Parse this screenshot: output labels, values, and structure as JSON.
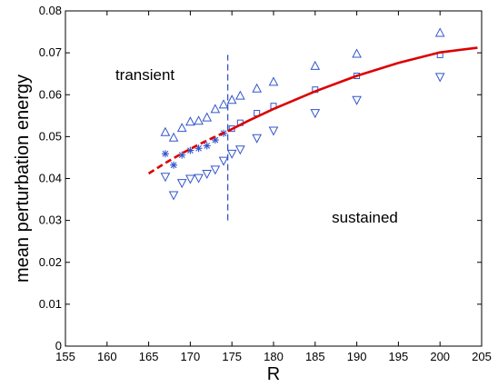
{
  "chart_data": {
    "type": "scatter",
    "title": "",
    "xlabel": "R",
    "ylabel": "mean perturbation energy",
    "xlim": [
      155,
      205
    ],
    "ylim": [
      0,
      0.08
    ],
    "xticks": [
      155,
      160,
      165,
      170,
      175,
      180,
      185,
      190,
      195,
      200,
      205
    ],
    "yticks": [
      0,
      0.01,
      0.02,
      0.03,
      0.04,
      0.05,
      0.06,
      0.07,
      0.08
    ],
    "ytick_labels": [
      "0",
      "0.01",
      "0.02",
      "0.03",
      "0.04",
      "0.05",
      "0.06",
      "0.07",
      "0.08"
    ],
    "grid": false,
    "annotations": [
      {
        "text": "transient",
        "x": 161,
        "y": 0.0635
      },
      {
        "text": "sustained",
        "x": 187,
        "y": 0.0295
      }
    ],
    "threshold": {
      "x": 174.5,
      "y_range": [
        0.03,
        0.0695
      ],
      "style": "dashed",
      "color": "#3355cc"
    },
    "series": [
      {
        "marker": "triangle-up",
        "color": "#3355cc",
        "points": [
          [
            167,
            0.051
          ],
          [
            168,
            0.0497
          ],
          [
            169,
            0.052
          ],
          [
            170,
            0.0535
          ],
          [
            171,
            0.0537
          ],
          [
            172,
            0.0545
          ],
          [
            173,
            0.0565
          ],
          [
            174,
            0.0576
          ],
          [
            175,
            0.0587
          ],
          [
            176,
            0.0597
          ],
          [
            178,
            0.0614
          ],
          [
            180,
            0.063
          ],
          [
            185,
            0.0668
          ],
          [
            190,
            0.0697
          ],
          [
            200,
            0.0747
          ]
        ]
      },
      {
        "marker": "triangle-down",
        "color": "#3355cc",
        "points": [
          [
            167,
            0.0405
          ],
          [
            168,
            0.0361
          ],
          [
            169,
            0.039
          ],
          [
            170,
            0.04
          ],
          [
            171,
            0.0402
          ],
          [
            172,
            0.0412
          ],
          [
            173,
            0.0422
          ],
          [
            174,
            0.0443
          ],
          [
            175,
            0.046
          ],
          [
            176,
            0.047
          ],
          [
            178,
            0.0497
          ],
          [
            180,
            0.0515
          ],
          [
            185,
            0.0557
          ],
          [
            190,
            0.0588
          ],
          [
            200,
            0.0643
          ]
        ]
      },
      {
        "marker": "square",
        "color": "#3355cc",
        "points": [
          [
            175,
            0.0519
          ],
          [
            176,
            0.0533
          ],
          [
            178,
            0.0556
          ],
          [
            180,
            0.0573
          ],
          [
            185,
            0.0612
          ],
          [
            190,
            0.0645
          ],
          [
            200,
            0.0695
          ]
        ]
      },
      {
        "marker": "star",
        "color": "#3355cc",
        "points": [
          [
            167,
            0.0459
          ],
          [
            168,
            0.0432
          ],
          [
            169,
            0.0456
          ],
          [
            170,
            0.0467
          ],
          [
            171,
            0.0472
          ],
          [
            172,
            0.0478
          ],
          [
            173,
            0.0492
          ],
          [
            174,
            0.0508
          ]
        ]
      },
      {
        "marker": "none",
        "line": "dashed",
        "color": "#dd0000",
        "points": [
          [
            165,
            0.0412
          ],
          [
            167,
            0.0437
          ],
          [
            169,
            0.046
          ],
          [
            171,
            0.0481
          ],
          [
            173,
            0.05
          ],
          [
            174.5,
            0.0513
          ]
        ]
      },
      {
        "marker": "none",
        "line": "solid",
        "color": "#dd0000",
        "points": [
          [
            174.5,
            0.0513
          ],
          [
            177,
            0.0538
          ],
          [
            180,
            0.0566
          ],
          [
            185,
            0.0608
          ],
          [
            190,
            0.0645
          ],
          [
            195,
            0.0676
          ],
          [
            200,
            0.0701
          ],
          [
            204.5,
            0.0712
          ]
        ]
      }
    ]
  }
}
